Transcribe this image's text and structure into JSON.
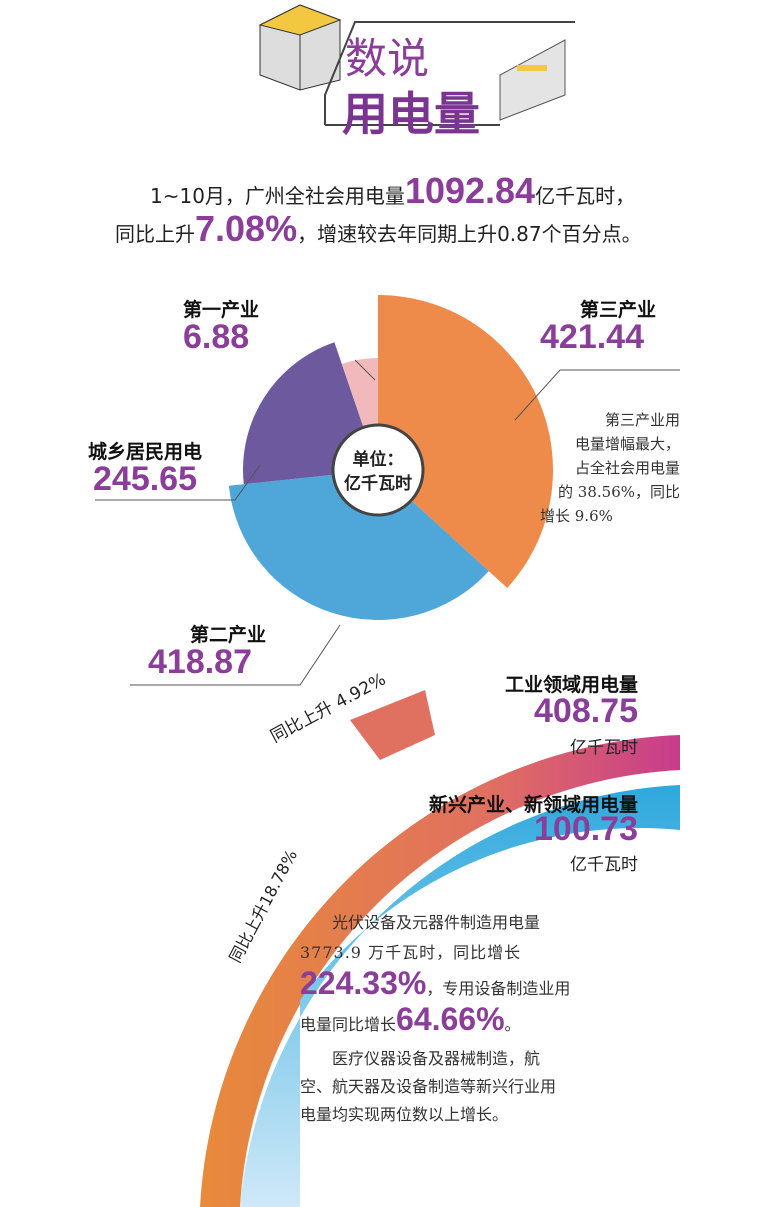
{
  "header": {
    "title_line1": "数说",
    "title_line2": "用电量"
  },
  "intro": {
    "l1a": "1~10月，广州全社会用电量",
    "l1b": "1092.84",
    "l1c": "亿千瓦时，",
    "l2a": "同比上升",
    "l2b": "7.08%",
    "l2c": "，增速较去年同期上升0.87个百分点。"
  },
  "chart_data": {
    "type": "pie",
    "title": "",
    "center_label": "单位：",
    "center_unit": "亿千瓦时",
    "slices": [
      {
        "name": "第三产业",
        "value": 421.44,
        "color": "#ee8a4a"
      },
      {
        "name": "第二产业",
        "value": 418.87,
        "color": "#4fa6d8"
      },
      {
        "name": "城乡居民用电",
        "value": 245.65,
        "color": "#6d5a9e"
      },
      {
        "name": "第一产业",
        "value": 6.88,
        "color": "#f2b9bd"
      }
    ],
    "values_text": [
      "421.44",
      "418.87",
      "245.65",
      "6.88"
    ]
  },
  "note": {
    "lines": [
      "第三产业用",
      "电量增幅最大，",
      "占全社会用电量",
      "的 38.56%，同比",
      "增长 9.6%"
    ]
  },
  "industrial": {
    "label": "工业领域用电量",
    "value": "408.75",
    "unit": "亿千瓦时",
    "growth": "同比上升 4.92%"
  },
  "emerging": {
    "label": "新兴产业、新领域用电量",
    "value": "100.73",
    "unit": "亿千瓦时",
    "growth": "同比上升18.78%"
  },
  "para1": {
    "a": "光伏设备及元器件制造用电量",
    "b": "3773.9 万千瓦时，同比增长",
    "c": "224.33%",
    "d": "，专用设备制造业用",
    "e": "电量同比增长",
    "f": "64.66%",
    "g": "。"
  },
  "para2": {
    "lines": [
      "医疗仪器设备及器械制造，航",
      "空、航天器及设备制造等新兴行业用",
      "电量均实现两位数以上增长。"
    ]
  }
}
